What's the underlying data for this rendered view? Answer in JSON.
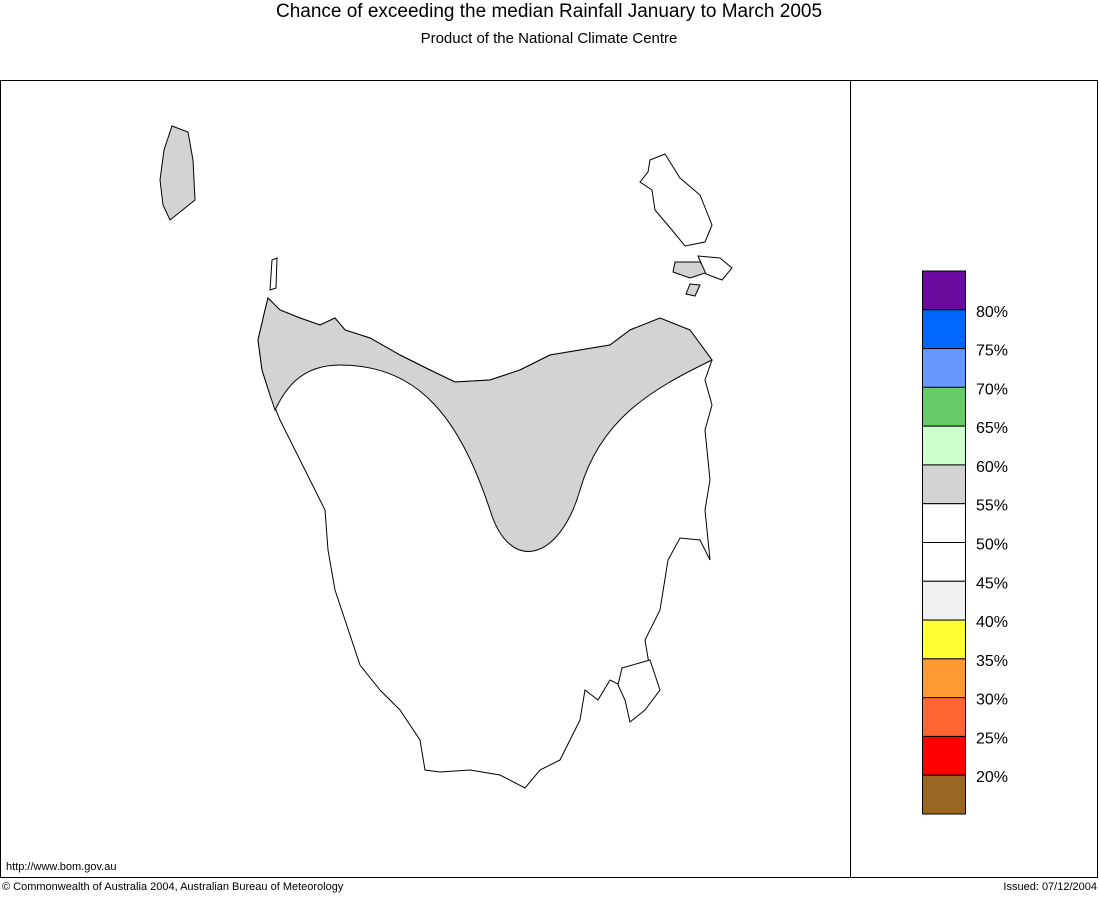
{
  "header": {
    "title": "Chance of exceeding the median Rainfall January to March 2005",
    "subtitle": "Product of the National Climate Centre"
  },
  "legend": {
    "colors": [
      "#6a0a9e",
      "#0066ff",
      "#6699ff",
      "#66cc66",
      "#ccffcc",
      "#d3d3d3",
      "#ffffff",
      "#ffffff",
      "#f0f0f0",
      "#ffff33",
      "#ff9933",
      "#ff6633",
      "#ff0000",
      "#996622"
    ],
    "labels": [
      "80%",
      "75%",
      "70%",
      "65%",
      "60%",
      "55%",
      "50%",
      "45%",
      "40%",
      "35%",
      "30%",
      "25%",
      "20%"
    ]
  },
  "footer": {
    "url": "http://www.bom.gov.au",
    "copyright": "© Commonwealth of Australia 2004, Australian Bureau of Meteorology",
    "issued": "Issued: 07/12/2004"
  }
}
